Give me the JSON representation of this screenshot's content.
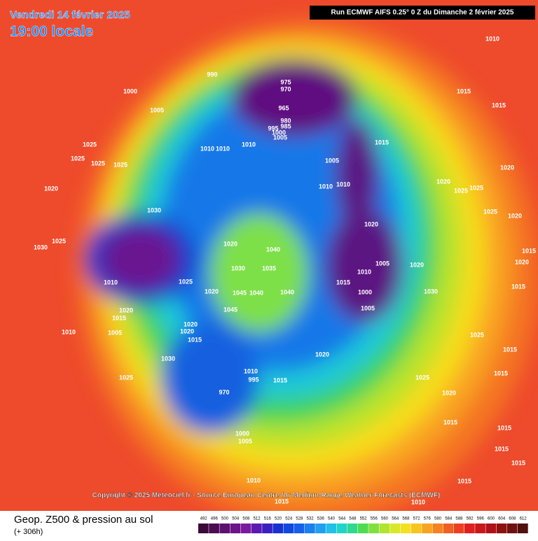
{
  "header": {
    "date": "Vendredi 14 février 2025",
    "time": "19:00 locale",
    "run": "Run ECMWF AIFS 0.25° 0 Z du Dimanche 2 février 2025"
  },
  "copyright": "Copyright © 2025 Meteociel.fr - Source European Centre for Medium-Range Weather Forecasts (ECMWF)",
  "footer": {
    "title": "Geop. Z500 & pression au sol",
    "lead": "(+ 306h)"
  },
  "color_scale": [
    492,
    496,
    500,
    504,
    508,
    512,
    516,
    520,
    524,
    528,
    532,
    536,
    540,
    544,
    548,
    552,
    556,
    560,
    564,
    568,
    572,
    576,
    580,
    584,
    588,
    592,
    596,
    600,
    604,
    608,
    612
  ],
  "pressure_labels": [
    990,
    1000,
    1005,
    975,
    970,
    965,
    980,
    985,
    995,
    1000,
    1005,
    1010,
    1010,
    1010,
    1005,
    1010,
    1010,
    1015,
    1010,
    1015,
    1015,
    1025,
    1025,
    1025,
    1025,
    1020,
    1030,
    1030,
    1025,
    1010,
    1025,
    1020,
    1030,
    1040,
    1035,
    1045,
    1040,
    1040,
    1045,
    1020,
    1020,
    1015,
    1020,
    1015,
    1020,
    1010,
    1005,
    1030,
    1025,
    1000,
    1005,
    1010,
    1015,
    995,
    970,
    1020,
    1005,
    1010,
    1015,
    1000,
    1005,
    1020,
    1030,
    1020,
    1020,
    1025,
    1025,
    1020,
    1025,
    1020,
    1015,
    1020,
    1015,
    1025,
    1015,
    1015,
    1020,
    1015,
    1015,
    1015,
    1015,
    1010,
    1015,
    1010,
    1015,
    1025
  ]
}
